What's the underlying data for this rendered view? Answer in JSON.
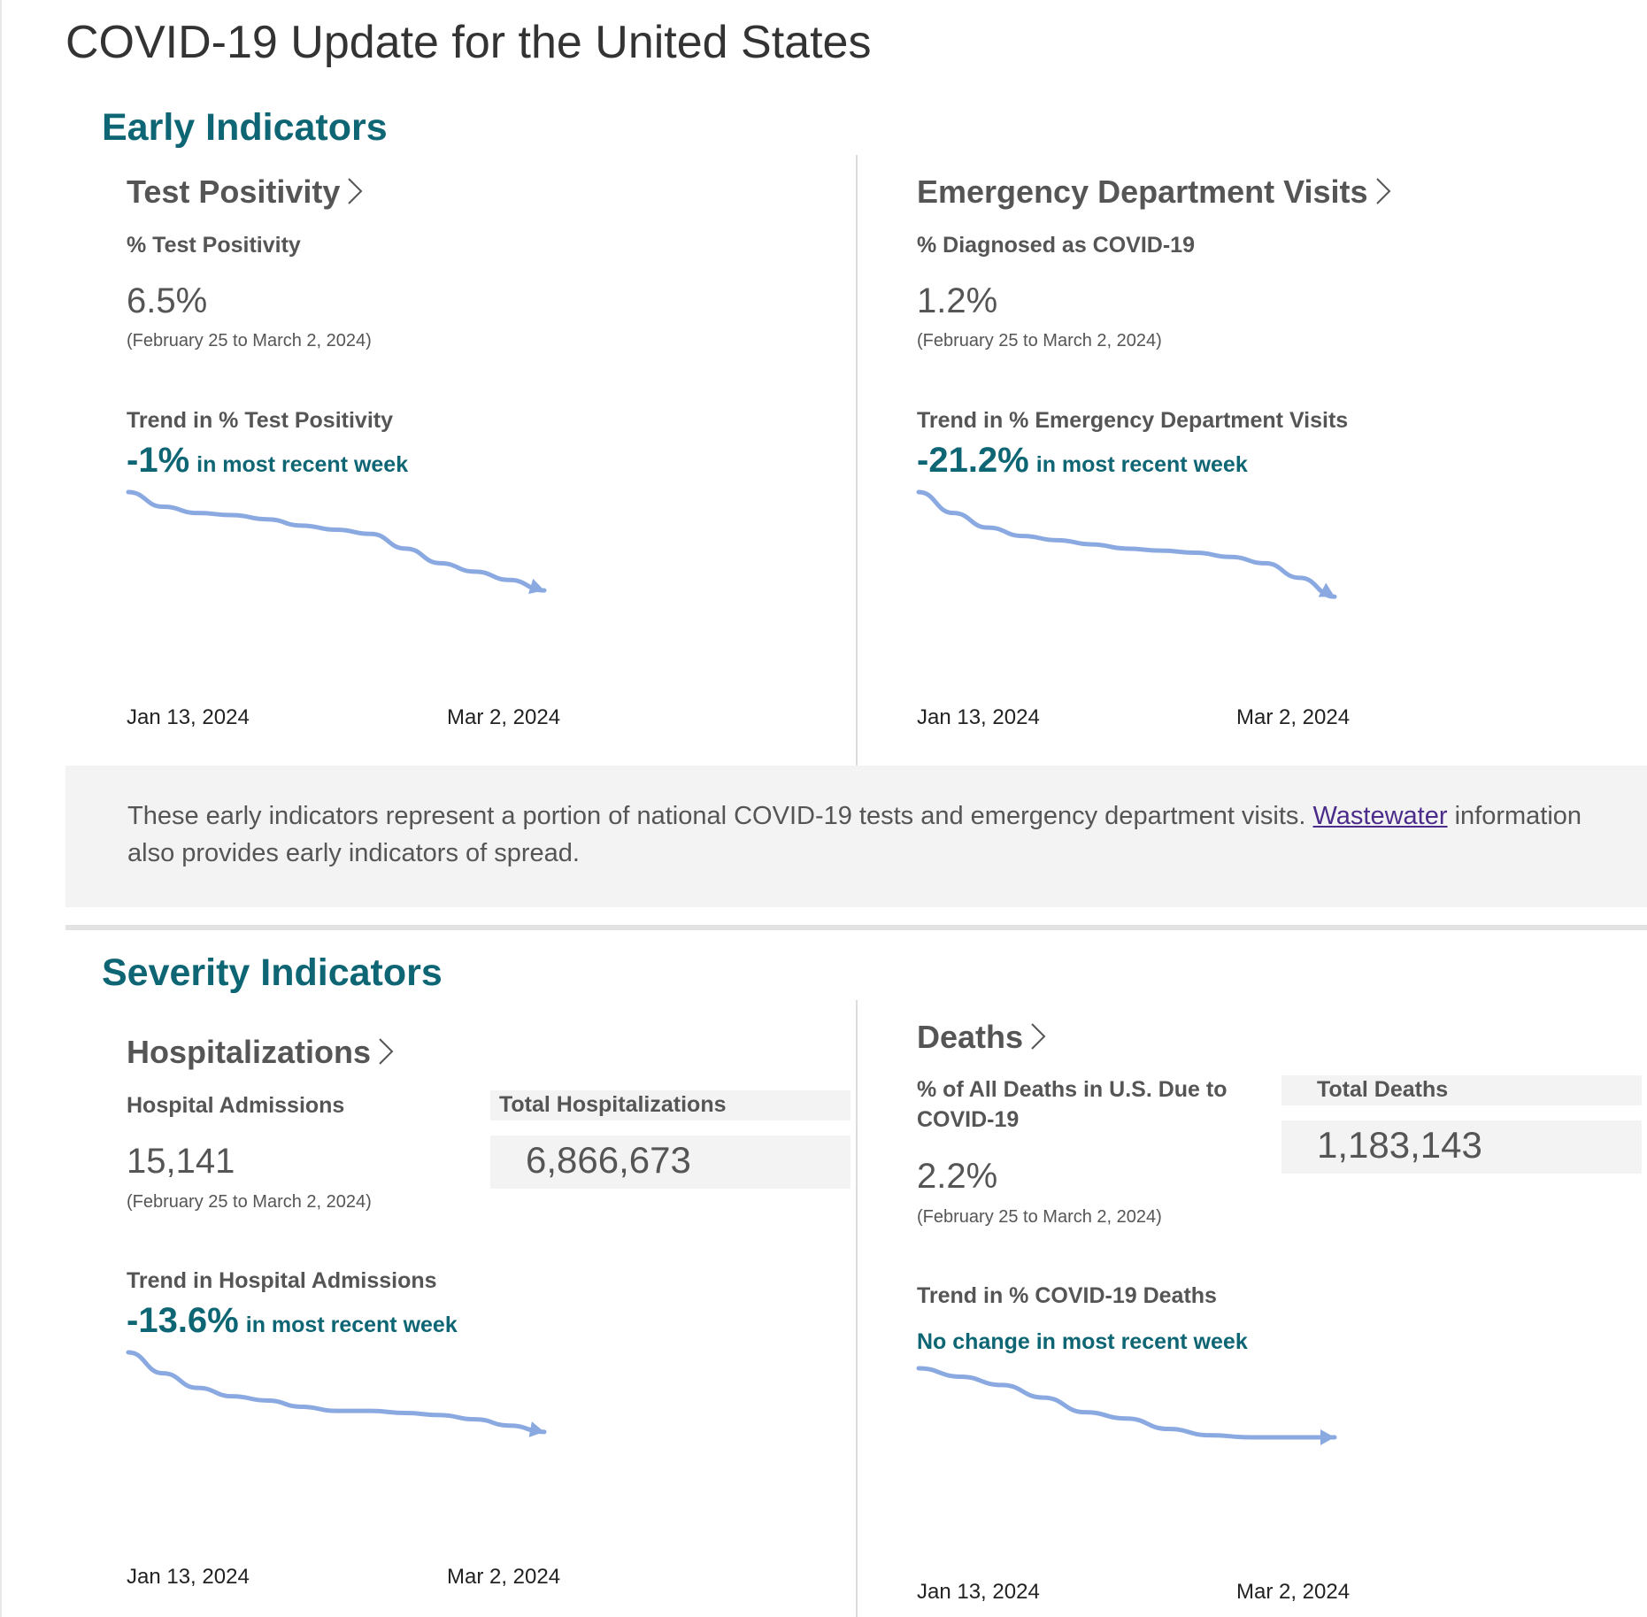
{
  "page": {
    "title": "COVID-19 Update for the United States"
  },
  "colors": {
    "accent": "#0e6574",
    "sparkline": "#8aa9e1",
    "link": "#4b2c8a",
    "panel": "#f3f3f3"
  },
  "early": {
    "title": "Early Indicators",
    "test_positivity": {
      "title": "Test Positivity",
      "icon": "chevron-right-icon",
      "metric_label": "% Test Positivity",
      "value": "6.5%",
      "date_range": "(February 25 to March 2, 2024)",
      "trend_label": "Trend in % Test Positivity",
      "trend_pct": "-1%",
      "trend_suffix": "in most recent week",
      "x_start": "Jan 13, 2024",
      "x_end": "Mar 2, 2024"
    },
    "ed_visits": {
      "title": "Emergency Department Visits",
      "icon": "chevron-right-icon",
      "metric_label": "% Diagnosed as COVID-19",
      "value": "1.2%",
      "date_range": "(February 25 to March 2, 2024)",
      "trend_label": "Trend in % Emergency Department Visits",
      "trend_pct": "-21.2%",
      "trend_suffix": "in most recent week",
      "x_start": "Jan 13, 2024",
      "x_end": "Mar 2, 2024"
    },
    "note": {
      "text": "These early indicators represent a portion of national COVID-19 tests and emergency department visits.",
      "link_text": "Wastewater",
      "text_after": "information also provides early indicators of spread."
    }
  },
  "severity": {
    "title": "Severity Indicators",
    "hospitalizations": {
      "title": "Hospitalizations",
      "icon": "chevron-right-icon",
      "metric_label": "Hospital Admissions",
      "value": "15,141",
      "date_range": "(February 25 to March 2, 2024)",
      "total_label": "Total Hospitalizations",
      "total_value": "6,866,673",
      "trend_label": "Trend in Hospital Admissions",
      "trend_pct": "-13.6%",
      "trend_suffix": "in most recent week",
      "x_start": "Jan 13, 2024",
      "x_end": "Mar 2, 2024"
    },
    "deaths": {
      "title": "Deaths",
      "icon": "chevron-right-icon",
      "metric_label": "% of All Deaths in U.S. Due to COVID-19",
      "value": "2.2%",
      "date_range": "(February 25 to March 2, 2024)",
      "total_label": "Total Deaths",
      "total_value": "1,183,143",
      "trend_label": "Trend in % COVID-19 Deaths",
      "trend_text": "No change in most recent week",
      "x_start": "Jan 13, 2024",
      "x_end": "Mar 2, 2024"
    }
  },
  "sparklines": {
    "test_positivity": [
      1.0,
      0.93,
      0.9,
      0.89,
      0.87,
      0.84,
      0.82,
      0.8,
      0.73,
      0.66,
      0.62,
      0.58,
      0.53
    ],
    "ed_visits": [
      1.0,
      0.9,
      0.83,
      0.79,
      0.77,
      0.75,
      0.73,
      0.72,
      0.71,
      0.69,
      0.66,
      0.59,
      0.5
    ],
    "hospitalizations": [
      1.0,
      0.9,
      0.83,
      0.79,
      0.77,
      0.74,
      0.72,
      0.72,
      0.71,
      0.7,
      0.68,
      0.65,
      0.62
    ],
    "deaths": [
      1.0,
      0.96,
      0.92,
      0.86,
      0.79,
      0.76,
      0.71,
      0.68,
      0.67,
      0.67,
      0.67
    ]
  }
}
